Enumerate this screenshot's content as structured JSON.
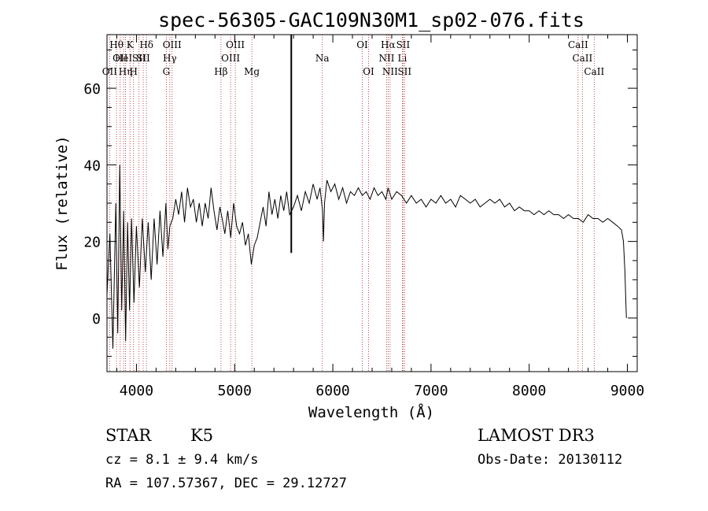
{
  "chart_data": {
    "type": "line",
    "title": "spec-56305-GAC109N30M1_sp02-076.fits",
    "xlabel": "Wavelength (Å)",
    "ylabel": "Flux (relative)",
    "xlim": [
      3700,
      9100
    ],
    "ylim": [
      -14,
      74
    ],
    "xticks": [
      4000,
      5000,
      6000,
      7000,
      8000,
      9000
    ],
    "yticks": [
      0,
      20,
      40,
      60
    ],
    "line_color": "#000000",
    "marker_color": "#b22222",
    "spikes": [
      {
        "x": 5577,
        "y_top": 74,
        "y_bottom": 17
      }
    ],
    "series": [
      {
        "name": "flux",
        "points": [
          [
            3700,
            6
          ],
          [
            3730,
            22
          ],
          [
            3760,
            -8
          ],
          [
            3790,
            30
          ],
          [
            3810,
            -4
          ],
          [
            3830,
            40
          ],
          [
            3850,
            2
          ],
          [
            3870,
            28
          ],
          [
            3890,
            -6
          ],
          [
            3910,
            25
          ],
          [
            3930,
            2
          ],
          [
            3950,
            26
          ],
          [
            3975,
            4
          ],
          [
            4000,
            24
          ],
          [
            4030,
            8
          ],
          [
            4060,
            26
          ],
          [
            4090,
            12
          ],
          [
            4120,
            25
          ],
          [
            4150,
            10
          ],
          [
            4180,
            26
          ],
          [
            4210,
            14
          ],
          [
            4240,
            28
          ],
          [
            4270,
            16
          ],
          [
            4300,
            30
          ],
          [
            4320,
            18
          ],
          [
            4340,
            24
          ],
          [
            4370,
            26
          ],
          [
            4400,
            31
          ],
          [
            4430,
            27
          ],
          [
            4460,
            33
          ],
          [
            4490,
            25
          ],
          [
            4520,
            34
          ],
          [
            4550,
            29
          ],
          [
            4580,
            31
          ],
          [
            4610,
            25
          ],
          [
            4640,
            30
          ],
          [
            4670,
            24
          ],
          [
            4700,
            30
          ],
          [
            4730,
            26
          ],
          [
            4760,
            34
          ],
          [
            4790,
            28
          ],
          [
            4820,
            23
          ],
          [
            4850,
            29
          ],
          [
            4880,
            25
          ],
          [
            4900,
            22
          ],
          [
            4930,
            28
          ],
          [
            4960,
            21
          ],
          [
            4990,
            30
          ],
          [
            5020,
            24
          ],
          [
            5050,
            22
          ],
          [
            5080,
            25
          ],
          [
            5110,
            19
          ],
          [
            5140,
            22
          ],
          [
            5170,
            14
          ],
          [
            5200,
            19
          ],
          [
            5230,
            21
          ],
          [
            5260,
            25
          ],
          [
            5290,
            29
          ],
          [
            5320,
            24
          ],
          [
            5350,
            33
          ],
          [
            5380,
            27
          ],
          [
            5410,
            31
          ],
          [
            5440,
            26
          ],
          [
            5470,
            32
          ],
          [
            5500,
            28
          ],
          [
            5530,
            33
          ],
          [
            5560,
            27
          ],
          [
            5600,
            29
          ],
          [
            5640,
            32
          ],
          [
            5680,
            28
          ],
          [
            5720,
            33
          ],
          [
            5760,
            30
          ],
          [
            5800,
            35
          ],
          [
            5840,
            31
          ],
          [
            5870,
            34
          ],
          [
            5895,
            28
          ],
          [
            5905,
            20
          ],
          [
            5915,
            30
          ],
          [
            5940,
            36
          ],
          [
            5980,
            33
          ],
          [
            6020,
            35
          ],
          [
            6060,
            31
          ],
          [
            6100,
            34
          ],
          [
            6140,
            30
          ],
          [
            6180,
            33
          ],
          [
            6220,
            32
          ],
          [
            6260,
            34
          ],
          [
            6300,
            32
          ],
          [
            6340,
            33
          ],
          [
            6380,
            31
          ],
          [
            6420,
            34
          ],
          [
            6460,
            32
          ],
          [
            6500,
            33
          ],
          [
            6540,
            31
          ],
          [
            6563,
            34
          ],
          [
            6600,
            31
          ],
          [
            6650,
            33
          ],
          [
            6700,
            32
          ],
          [
            6750,
            30
          ],
          [
            6800,
            32
          ],
          [
            6850,
            30
          ],
          [
            6900,
            31
          ],
          [
            6950,
            29
          ],
          [
            7000,
            31
          ],
          [
            7050,
            30
          ],
          [
            7100,
            32
          ],
          [
            7150,
            30
          ],
          [
            7200,
            31
          ],
          [
            7250,
            29
          ],
          [
            7300,
            32
          ],
          [
            7350,
            31
          ],
          [
            7400,
            30
          ],
          [
            7450,
            31
          ],
          [
            7500,
            29
          ],
          [
            7550,
            30
          ],
          [
            7600,
            31
          ],
          [
            7650,
            30
          ],
          [
            7700,
            31
          ],
          [
            7750,
            29
          ],
          [
            7800,
            30
          ],
          [
            7850,
            28
          ],
          [
            7900,
            29
          ],
          [
            7950,
            28
          ],
          [
            8000,
            28
          ],
          [
            8050,
            27
          ],
          [
            8100,
            28
          ],
          [
            8150,
            27
          ],
          [
            8200,
            28
          ],
          [
            8250,
            27
          ],
          [
            8300,
            27
          ],
          [
            8350,
            26
          ],
          [
            8400,
            27
          ],
          [
            8450,
            26
          ],
          [
            8500,
            26
          ],
          [
            8550,
            25
          ],
          [
            8600,
            27
          ],
          [
            8650,
            26
          ],
          [
            8700,
            26
          ],
          [
            8750,
            25
          ],
          [
            8800,
            26
          ],
          [
            8850,
            25
          ],
          [
            8900,
            24
          ],
          [
            8940,
            23
          ],
          [
            8960,
            20
          ],
          [
            8975,
            12
          ],
          [
            8985,
            4
          ],
          [
            8990,
            0
          ]
        ]
      }
    ],
    "line_markers": [
      {
        "x": 3797,
        "row": 0,
        "label": "Hθ"
      },
      {
        "x": 3835,
        "row": 1,
        "label": "OII"
      },
      {
        "x": 3727,
        "row": 2,
        "label": "OII"
      },
      {
        "x": 3869,
        "row": 1,
        "label": "HeI"
      },
      {
        "x": 3889,
        "row": 2,
        "label": "Hη"
      },
      {
        "x": 3934,
        "row": 0,
        "label": "K"
      },
      {
        "x": 3970,
        "row": 2,
        "label": "H"
      },
      {
        "x": 4026,
        "row": 1,
        "label": "SII"
      },
      {
        "x": 4102,
        "row": 0,
        "label": "Hδ"
      },
      {
        "x": 4069,
        "row": 1,
        "label": "SII"
      },
      {
        "x": 4304,
        "row": 2,
        "label": "G"
      },
      {
        "x": 4340,
        "row": 1,
        "label": "Hγ"
      },
      {
        "x": 4363,
        "row": 0,
        "label": "OIII"
      },
      {
        "x": 4861,
        "row": 2,
        "label": "Hβ"
      },
      {
        "x": 4959,
        "row": 1,
        "label": "OIII"
      },
      {
        "x": 5007,
        "row": 0,
        "label": "OIII"
      },
      {
        "x": 5175,
        "row": 2,
        "label": "Mg"
      },
      {
        "x": 5893,
        "row": 1,
        "label": "Na"
      },
      {
        "x": 6300,
        "row": 0,
        "label": "OI"
      },
      {
        "x": 6364,
        "row": 2,
        "label": "OI"
      },
      {
        "x": 6548,
        "row": 1,
        "label": "NII"
      },
      {
        "x": 6563,
        "row": 0,
        "label": "Hα"
      },
      {
        "x": 6583,
        "row": 2,
        "label": "NII"
      },
      {
        "x": 6708,
        "row": 1,
        "label": "Li"
      },
      {
        "x": 6716,
        "row": 0,
        "label": "SII"
      },
      {
        "x": 6731,
        "row": 2,
        "label": "SII"
      },
      {
        "x": 8498,
        "row": 0,
        "label": "CaII"
      },
      {
        "x": 8542,
        "row": 1,
        "label": "CaII"
      },
      {
        "x": 8662,
        "row": 2,
        "label": "CaII"
      }
    ]
  },
  "info": {
    "object_class": "STAR",
    "subclass": "K5",
    "survey": "LAMOST DR3",
    "cz": "cz = 8.1 ± 9.4 km/s",
    "obs_date": "Obs-Date: 20130112",
    "coords": "RA = 107.57367, DEC =  29.12727"
  }
}
